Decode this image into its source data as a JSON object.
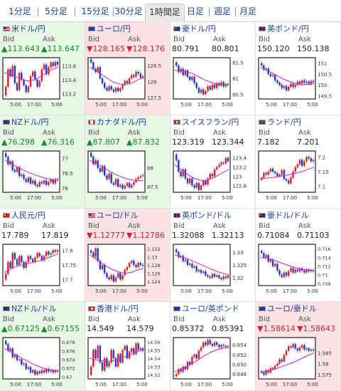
{
  "tabs": [
    "1分足",
    "5分足",
    "15分足",
    "30分足",
    "1時間足",
    "日足",
    "週足",
    "月足"
  ],
  "active_tab": 4,
  "bid_label": "Bid",
  "ask_label": "Ask",
  "x_ticks": [
    "5:00",
    "17:00",
    "5:00"
  ],
  "colors": {
    "up": "#1a8a2a",
    "down": "#d3232e",
    "candle_up": "#e02020",
    "candle_down": "#1a3cc8",
    "ma": "#d020d0",
    "border": "#202020",
    "tile_up": "#e6f7e3",
    "tile_down": "#fbe2e4"
  },
  "pairs": [
    {
      "name": "米ドル/円",
      "flag": "us",
      "trend": "up",
      "bid": "▲113.643",
      "ask": "▲113.647",
      "yticks": [
        "113.6",
        "113.4",
        "113.2"
      ],
      "ylim": [
        113.12,
        113.72
      ],
      "ma": [
        113.5,
        113.48,
        113.44,
        113.4,
        113.38,
        113.4,
        113.44,
        113.5,
        113.55,
        113.58
      ],
      "candles": [
        113.3,
        113.55,
        113.45,
        113.6,
        113.35,
        113.25,
        113.5,
        113.4,
        113.32,
        113.22,
        113.3,
        113.45,
        113.52,
        113.4,
        113.3,
        113.38,
        113.55,
        113.62,
        113.48,
        113.58,
        113.65,
        113.6,
        113.66,
        113.62
      ]
    },
    {
      "name": "ユーロ/円",
      "flag": "eu",
      "trend": "down",
      "bid": "▼128.165",
      "ask": "▼128.176",
      "yticks": [
        "128.5",
        "128",
        "127.5"
      ],
      "ylim": [
        127.45,
        128.75
      ],
      "ma": [
        128.45,
        128.35,
        128.22,
        128.1,
        127.98,
        127.92,
        127.9,
        127.95,
        128.05,
        128.12
      ],
      "candles": [
        128.6,
        128.4,
        128.3,
        128.45,
        128.1,
        127.95,
        127.8,
        127.72,
        127.85,
        127.75,
        127.68,
        127.8,
        127.7,
        127.78,
        127.9,
        128.02,
        127.95,
        128.1,
        128.2,
        128.15,
        128.3,
        128.25,
        128.12,
        128.17
      ]
    },
    {
      "name": "豪ドル/円",
      "flag": "au",
      "trend": "flat",
      "bid": "80.791",
      "ask": "80.801",
      "yticks": [
        "81.5",
        "81",
        "80.5"
      ],
      "ylim": [
        80.35,
        81.65
      ],
      "ma": [
        81.25,
        81.25,
        81.2,
        81.15,
        81.05,
        80.95,
        80.88,
        80.82,
        80.78,
        80.8
      ],
      "candles": [
        81.4,
        81.2,
        81.3,
        81.1,
        81.25,
        81.05,
        80.95,
        81.05,
        80.85,
        80.7,
        80.55,
        80.65,
        80.5,
        80.6,
        80.75,
        80.65,
        80.8,
        80.7,
        80.85,
        80.78,
        80.88,
        80.75,
        80.82,
        80.79
      ]
    },
    {
      "name": "英ポンド/円",
      "flag": "gb",
      "trend": "flat",
      "bid": "150.120",
      "ask": "150.138",
      "yticks": [
        "151",
        "150.5",
        "150",
        "149.5"
      ],
      "ylim": [
        149.35,
        151.25
      ],
      "ma": [
        150.8,
        150.7,
        150.55,
        150.4,
        150.25,
        150.15,
        150.05,
        150.0,
        150.02,
        150.05
      ],
      "candles": [
        150.9,
        150.7,
        150.75,
        150.5,
        150.4,
        150.45,
        150.2,
        150.1,
        150.0,
        149.85,
        149.95,
        149.75,
        149.9,
        150.05,
        149.9,
        150.0,
        150.15,
        150.05,
        150.2,
        150.1,
        150.15,
        150.05,
        150.18,
        150.12
      ]
    },
    {
      "name": "NZドル/円",
      "flag": "nz",
      "trend": "up",
      "bid": "▲76.298",
      "ask": "▲76.316",
      "yticks": [
        "77",
        "76.5",
        "76"
      ],
      "ylim": [
        75.85,
        77.25
      ],
      "ma": [
        76.95,
        76.85,
        76.72,
        76.62,
        76.52,
        76.45,
        76.38,
        76.32,
        76.28,
        76.25
      ],
      "candles": [
        77.05,
        76.8,
        76.9,
        76.6,
        76.55,
        76.7,
        76.4,
        76.45,
        76.3,
        76.2,
        76.35,
        76.15,
        76.25,
        76.1,
        76.05,
        76.2,
        76.15,
        76.25,
        76.1,
        76.2,
        76.28,
        76.15,
        76.3,
        76.3
      ]
    },
    {
      "name": "カナダドル/円",
      "flag": "ca",
      "trend": "up",
      "bid": "▲87.807",
      "ask": "▲87.832",
      "yticks": [
        "88",
        "87.5"
      ],
      "ylim": [
        87.35,
        88.45
      ],
      "ma": [
        88.2,
        88.12,
        88.05,
        87.95,
        87.85,
        87.78,
        87.72,
        87.68,
        87.66,
        87.66
      ],
      "candles": [
        88.3,
        88.1,
        88.2,
        88.0,
        87.9,
        88.05,
        87.8,
        87.7,
        87.85,
        87.6,
        87.55,
        87.7,
        87.5,
        87.55,
        87.45,
        87.52,
        87.6,
        87.48,
        87.55,
        87.62,
        87.7,
        87.75,
        87.78,
        87.81
      ]
    },
    {
      "name": "スイスフラン/円",
      "flag": "ch",
      "trend": "flat",
      "bid": "123.319",
      "ask": "123.344",
      "yticks": [
        "123.4",
        "123.2",
        "123",
        "122.8"
      ],
      "ylim": [
        122.65,
        123.55
      ],
      "ma": [
        123.25,
        123.15,
        123.05,
        122.97,
        122.92,
        122.9,
        122.94,
        123.0,
        123.08,
        123.15
      ],
      "candles": [
        123.35,
        123.1,
        123.0,
        123.15,
        122.95,
        122.85,
        122.95,
        122.8,
        122.75,
        122.85,
        122.7,
        122.8,
        122.9,
        122.82,
        122.95,
        123.05,
        123.0,
        123.15,
        123.2,
        123.25,
        123.3,
        123.28,
        123.4,
        123.33
      ]
    },
    {
      "name": "ランド/円",
      "flag": "za",
      "trend": "flat",
      "bid": "7.182",
      "ask": "7.201",
      "yticks": [
        "7.2",
        "7.15",
        "7.1"
      ],
      "ylim": [
        7.08,
        7.22
      ],
      "ma": [
        7.125,
        7.128,
        7.13,
        7.133,
        7.136,
        7.14,
        7.145,
        7.15,
        7.158,
        7.165
      ],
      "candles": [
        7.13,
        7.145,
        7.14,
        7.15,
        7.16,
        7.15,
        7.145,
        7.135,
        7.14,
        7.155,
        7.125,
        7.12,
        7.11,
        7.13,
        7.15,
        7.165,
        7.175,
        7.19,
        7.17,
        7.185,
        7.2,
        7.195,
        7.185,
        7.19
      ]
    },
    {
      "name": "人民元/円",
      "flag": "cn",
      "trend": "flat",
      "bid": "17.789",
      "ask": "17.819",
      "yticks": [
        "17.8",
        "17.75",
        "17.7"
      ],
      "ylim": [
        17.68,
        17.82
      ],
      "ma": [
        17.725,
        17.735,
        17.745,
        17.75,
        17.755,
        17.76,
        17.765,
        17.772,
        17.78,
        17.788
      ],
      "candles": [
        17.72,
        17.76,
        17.74,
        17.79,
        17.77,
        17.75,
        17.78,
        17.76,
        17.74,
        17.76,
        17.78,
        17.77,
        17.76,
        17.775,
        17.79,
        17.78,
        17.765,
        17.78,
        17.795,
        17.785,
        17.79,
        17.8,
        17.795,
        17.8
      ]
    },
    {
      "name": "ユーロ/ドル",
      "flag": "us",
      "trend": "down",
      "bid": "▼1.12777",
      "ask": "▼1.12786",
      "yticks": [
        "1.132",
        "1.13",
        "1.128",
        "1.126",
        "1.124"
      ],
      "ylim": [
        1.123,
        1.133
      ],
      "ma": [
        1.1305,
        1.1295,
        1.1285,
        1.1275,
        1.1268,
        1.1262,
        1.126,
        1.1262,
        1.1268,
        1.1272
      ],
      "candles": [
        1.131,
        1.13,
        1.132,
        1.129,
        1.127,
        1.128,
        1.126,
        1.125,
        1.1245,
        1.1255,
        1.124,
        1.125,
        1.126,
        1.1245,
        1.1255,
        1.1268,
        1.1275,
        1.1285,
        1.129,
        1.128,
        1.1275,
        1.1285,
        1.128,
        1.1278
      ]
    },
    {
      "name": "英ポンド/ドル",
      "flag": "gb",
      "trend": "flat",
      "bid": "1.32088",
      "ask": "1.32113",
      "yticks": [
        "1.33",
        "1.325",
        "1.32"
      ],
      "ylim": [
        1.317,
        1.333
      ],
      "ma": [
        1.329,
        1.3283,
        1.3275,
        1.3265,
        1.3255,
        1.3245,
        1.3235,
        1.3225,
        1.3218,
        1.3212
      ],
      "candles": [
        1.33,
        1.328,
        1.3285,
        1.3265,
        1.327,
        1.325,
        1.3255,
        1.324,
        1.3245,
        1.3225,
        1.323,
        1.322,
        1.3225,
        1.321,
        1.3205,
        1.32,
        1.3215,
        1.3205,
        1.321,
        1.32,
        1.3195,
        1.3205,
        1.32,
        1.3209
      ]
    },
    {
      "name": "豪ドル/ドル",
      "flag": "au",
      "trend": "flat",
      "bid": "0.71084",
      "ask": "0.71103",
      "yticks": [
        "0.716",
        "0.714",
        "0.712",
        "0.71",
        "0.708"
      ],
      "ylim": [
        0.7075,
        0.717
      ],
      "ma": [
        0.714,
        0.7138,
        0.7135,
        0.713,
        0.7125,
        0.712,
        0.7116,
        0.7113,
        0.7111,
        0.711
      ],
      "candles": [
        0.715,
        0.714,
        0.7145,
        0.713,
        0.7135,
        0.712,
        0.7125,
        0.711,
        0.71,
        0.7095,
        0.7105,
        0.7098,
        0.7108,
        0.7115,
        0.7105,
        0.7112,
        0.7108,
        0.7115,
        0.711,
        0.7105,
        0.7112,
        0.7108,
        0.711,
        0.7108
      ]
    },
    {
      "name": "NZドル/ドル",
      "flag": "nz",
      "trend": "up",
      "bid": "▲0.67125",
      "ask": "▲0.67155",
      "yticks": [
        "0.678",
        "0.676",
        "0.674",
        "0.672",
        "0.67"
      ],
      "ylim": [
        0.6695,
        0.679
      ],
      "ma": [
        0.6765,
        0.6758,
        0.675,
        0.6742,
        0.6735,
        0.6728,
        0.6722,
        0.6718,
        0.6715,
        0.6714
      ],
      "candles": [
        0.6775,
        0.676,
        0.6765,
        0.6745,
        0.675,
        0.6738,
        0.674,
        0.6728,
        0.673,
        0.6718,
        0.6722,
        0.671,
        0.6715,
        0.6705,
        0.6712,
        0.6708,
        0.6715,
        0.671,
        0.6718,
        0.6712,
        0.6715,
        0.671,
        0.6714,
        0.6712
      ]
    },
    {
      "name": "香港ドル/円",
      "flag": "hk",
      "trend": "flat",
      "bid": "14.549",
      "ask": "14.579",
      "yticks": [
        "14.56",
        "14.55",
        "14.54",
        "14.53",
        "14.52"
      ],
      "ylim": [
        14.515,
        14.565
      ],
      "ma": [
        14.54,
        14.538,
        14.537,
        14.536,
        14.537,
        14.539,
        14.542,
        14.545,
        14.548,
        14.55
      ],
      "candles": [
        14.53,
        14.55,
        14.54,
        14.555,
        14.535,
        14.525,
        14.54,
        14.53,
        14.535,
        14.55,
        14.54,
        14.53,
        14.545,
        14.535,
        14.55,
        14.555,
        14.54,
        14.548,
        14.552,
        14.545,
        14.558,
        14.55,
        14.552,
        14.549
      ]
    },
    {
      "name": "ユーロ/英ポンド",
      "flag": "eu",
      "trend": "flat",
      "bid": "0.85372",
      "ask": "0.85391",
      "yticks": [
        "0.854",
        "0.852",
        "0.850",
        "0.848"
      ],
      "ylim": [
        0.847,
        0.8555
      ],
      "ma": [
        0.8485,
        0.849,
        0.8496,
        0.8502,
        0.851,
        0.8518,
        0.8525,
        0.853,
        0.8533,
        0.8535
      ],
      "candles": [
        0.848,
        0.849,
        0.8485,
        0.8495,
        0.849,
        0.8505,
        0.85,
        0.8515,
        0.852,
        0.8512,
        0.8528,
        0.8535,
        0.8545,
        0.854,
        0.855,
        0.8542,
        0.8538,
        0.8545,
        0.854,
        0.8535,
        0.854,
        0.8538,
        0.8536,
        0.8537
      ]
    },
    {
      "name": "ユーロ/豪ドル",
      "flag": "eu",
      "trend": "down",
      "bid": "▼1.58614",
      "ask": "▼1.58643",
      "yticks": [
        "1.585",
        "1.58",
        "1.575"
      ],
      "ylim": [
        1.573,
        1.592
      ],
      "ma": [
        1.576,
        1.5765,
        1.5772,
        1.578,
        1.579,
        1.58,
        1.5812,
        1.5825,
        1.5838,
        1.585
      ],
      "candles": [
        1.576,
        1.575,
        1.577,
        1.576,
        1.578,
        1.5775,
        1.579,
        1.58,
        1.582,
        1.581,
        1.584,
        1.586,
        1.588,
        1.5875,
        1.589,
        1.587,
        1.586,
        1.5875,
        1.5885,
        1.5865,
        1.587,
        1.586,
        1.5865,
        1.5861
      ]
    }
  ]
}
